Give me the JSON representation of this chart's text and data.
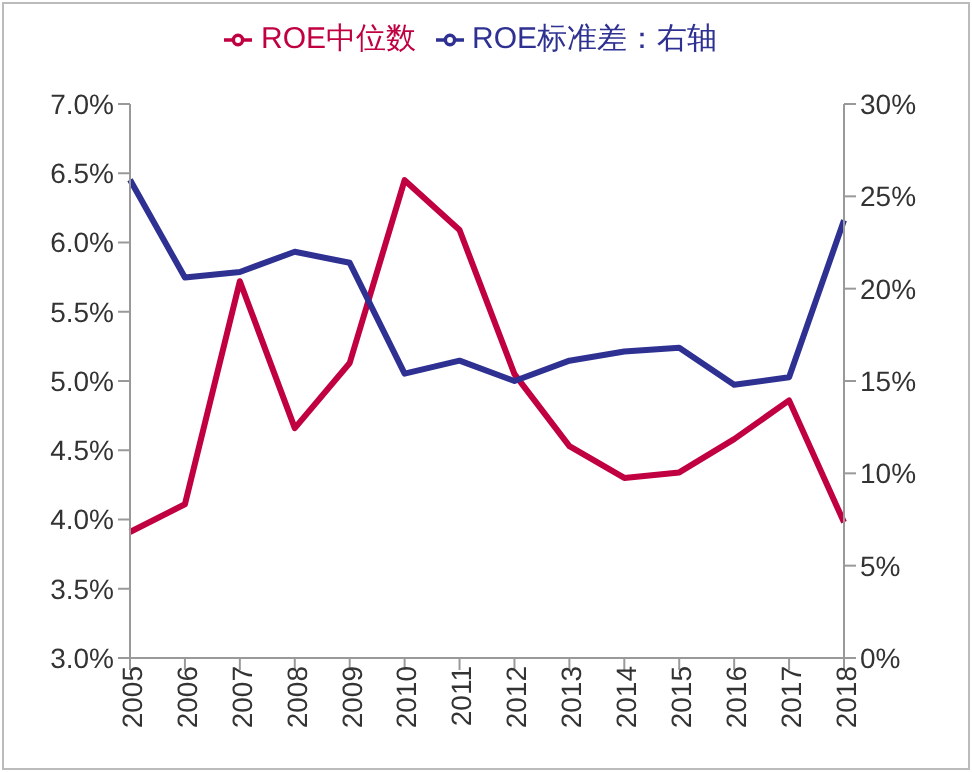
{
  "chart_data": {
    "type": "line",
    "categories": [
      "2005",
      "2006",
      "2007",
      "2008",
      "2009",
      "2010",
      "2011",
      "2012",
      "2013",
      "2014",
      "2015",
      "2016",
      "2017",
      "2018"
    ],
    "series": [
      {
        "name": "ROE中位数",
        "color": "#c00040",
        "values": [
          3.91,
          4.11,
          5.72,
          4.66,
          5.13,
          6.45,
          6.09,
          5.05,
          4.53,
          4.3,
          4.34,
          4.58,
          4.86,
          3.98
        ]
      },
      {
        "name": "ROE标准差：右轴",
        "color": "#2e3192",
        "axis": "y2",
        "values": [
          25.9,
          20.6,
          20.9,
          22.0,
          21.4,
          15.4,
          16.1,
          15.0,
          16.1,
          16.6,
          16.8,
          14.8,
          15.2,
          23.7
        ]
      }
    ],
    "ylim": [
      3.0,
      7.0
    ],
    "yticks": [
      {
        "value": 3.0,
        "label": "3.0%"
      },
      {
        "value": 3.5,
        "label": "3.5%"
      },
      {
        "value": 4.0,
        "label": "4.0%"
      },
      {
        "value": 4.5,
        "label": "4.5%"
      },
      {
        "value": 5.0,
        "label": "5.0%"
      },
      {
        "value": 5.5,
        "label": "5.5%"
      },
      {
        "value": 6.0,
        "label": "6.0%"
      },
      {
        "value": 6.5,
        "label": "6.5%"
      },
      {
        "value": 7.0,
        "label": "7.0%"
      }
    ],
    "y2lim": [
      0,
      30
    ],
    "y2ticks": [
      {
        "value": 0,
        "label": "0%"
      },
      {
        "value": 5,
        "label": "5%"
      },
      {
        "value": 10,
        "label": "10%"
      },
      {
        "value": 15,
        "label": "15%"
      },
      {
        "value": 20,
        "label": "20%"
      },
      {
        "value": 25,
        "label": "25%"
      },
      {
        "value": 30,
        "label": "30%"
      }
    ],
    "legend": "top",
    "grid": false,
    "marker": "none",
    "line_style": "solid"
  }
}
